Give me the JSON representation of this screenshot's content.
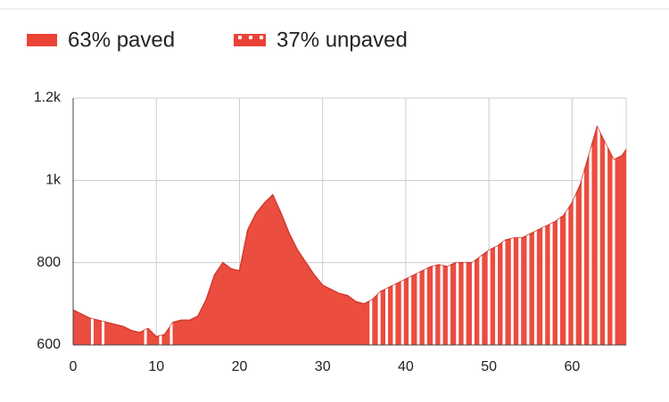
{
  "chart_data": {
    "type": "area",
    "legend": [
      {
        "label": "63% paved",
        "color": "#ea4335"
      },
      {
        "label": "37% unpaved",
        "color": "#ea4335"
      }
    ],
    "color": "#ea4335",
    "x": [
      0,
      1,
      2,
      3,
      4,
      5,
      6,
      7,
      8,
      9,
      10,
      11,
      12,
      13,
      14,
      15,
      16,
      17,
      18,
      19,
      20,
      21,
      22,
      23,
      24,
      25,
      26,
      27,
      28,
      29,
      30,
      31,
      32,
      33,
      34,
      35,
      36,
      37,
      38,
      39,
      40,
      41,
      42,
      43,
      44,
      45,
      46,
      47,
      48,
      49,
      50,
      51,
      52,
      53,
      54,
      55,
      56,
      57,
      58,
      59,
      60,
      61,
      62,
      63,
      64,
      65,
      66,
      66.5
    ],
    "values": [
      685,
      675,
      665,
      660,
      655,
      650,
      645,
      635,
      630,
      640,
      620,
      625,
      655,
      660,
      660,
      670,
      710,
      770,
      800,
      785,
      780,
      880,
      920,
      945,
      965,
      920,
      870,
      830,
      800,
      770,
      745,
      735,
      725,
      720,
      705,
      700,
      710,
      730,
      740,
      750,
      760,
      770,
      780,
      790,
      795,
      790,
      800,
      800,
      800,
      815,
      830,
      840,
      855,
      860,
      860,
      870,
      880,
      890,
      900,
      915,
      945,
      990,
      1060,
      1130,
      1090,
      1050,
      1060,
      1075
    ],
    "unpaved_x": [
      2.3,
      3.6,
      8.7,
      10.5,
      11.8,
      35.8,
      36.8,
      37.7,
      38.6,
      39.6,
      40.5,
      41.5,
      42.4,
      43.4,
      44.3,
      45.2,
      46.2,
      47.1,
      48.1,
      49,
      50,
      50.9,
      51.8,
      52.8,
      53.7,
      54.7,
      55.6,
      56.6,
      57.5,
      58.4,
      59.4,
      60.3,
      61.3,
      62.2,
      63.2,
      64.1,
      65
    ],
    "xlim": [
      0,
      66.5
    ],
    "xticks": [
      0,
      10,
      20,
      30,
      40,
      50,
      60
    ],
    "ylim": [
      600,
      1200
    ],
    "yticks": [
      600,
      800,
      {
        "value": 1000,
        "label": "1k"
      },
      {
        "value": 1200,
        "label": "1.2k"
      }
    ],
    "grid": true
  }
}
